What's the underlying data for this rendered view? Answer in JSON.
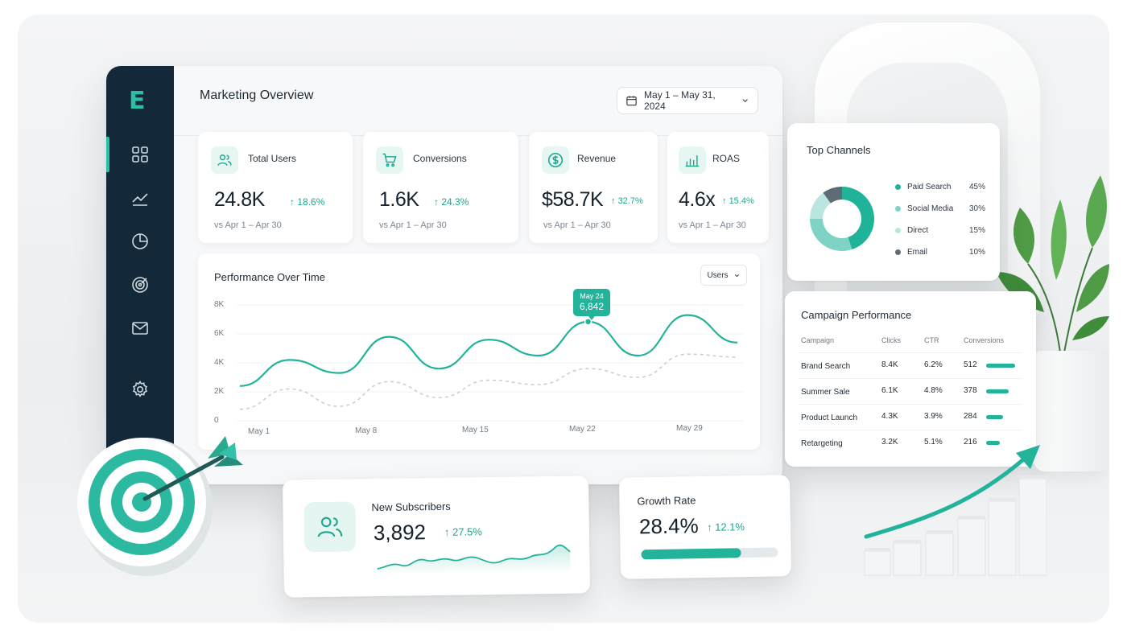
{
  "app": {
    "logo": "E",
    "title": "Marketing Overview",
    "date_range": "May 1 – May 31, 2024"
  },
  "sidebar": {
    "items": [
      {
        "name": "dashboard",
        "icon": "grid-icon",
        "active": true
      },
      {
        "name": "analytics",
        "icon": "trend-icon"
      },
      {
        "name": "reports",
        "icon": "pie-icon"
      },
      {
        "name": "goals",
        "icon": "target-icon"
      },
      {
        "name": "email",
        "icon": "mail-icon"
      },
      {
        "name": "settings",
        "icon": "gear-icon"
      }
    ]
  },
  "kpis": [
    {
      "label": "Total Users",
      "value": "24.8K",
      "delta": "18.6%",
      "sub": "vs Apr 1 – Apr 30",
      "icon": "users-icon"
    },
    {
      "label": "Conversions",
      "value": "1.6K",
      "delta": "24.3%",
      "sub": "vs Apr 1 – Apr 30",
      "icon": "cart-icon"
    },
    {
      "label": "Revenue",
      "value": "$58.7K",
      "delta": "32.7%",
      "sub": "vs Apr 1 – Apr 30",
      "icon": "dollar-icon"
    },
    {
      "label": "ROAS",
      "value": "4.6x",
      "delta": "15.4%",
      "sub": "vs Apr 1 – Apr 30",
      "icon": "bar-chart-icon"
    }
  ],
  "performance": {
    "title": "Performance Over Time",
    "metric": "Users",
    "tooltip": {
      "date": "May 24",
      "value": "6,842"
    },
    "y_ticks": [
      "8K",
      "6K",
      "4K",
      "2K",
      "0"
    ],
    "x_ticks": [
      "May 1",
      "May 8",
      "May 15",
      "May 22",
      "May 29"
    ]
  },
  "chart_data": {
    "type": "line",
    "title": "Performance Over Time",
    "xlabel": "",
    "ylabel": "",
    "ylim": [
      0,
      8000
    ],
    "x": [
      "May 1",
      "May 4",
      "May 8",
      "May 11",
      "May 15",
      "May 18",
      "May 22",
      "May 24",
      "May 27",
      "May 29",
      "May 31"
    ],
    "series": [
      {
        "values": [
          2400,
          4200,
          3300,
          5800,
          3600,
          5600,
          4500,
          6842,
          4500,
          7300,
          5400
        ],
        "color": "#23b39b"
      },
      {
        "values": [
          800,
          2200,
          1000,
          2700,
          1600,
          2800,
          2500,
          3600,
          3000,
          4600,
          4400
        ],
        "color": "#c9cfd3",
        "style": "dashed"
      }
    ],
    "grid": true
  },
  "top_channels": {
    "title": "Top Channels",
    "items": [
      {
        "label": "Paid Search",
        "pct": "45%",
        "value": 45,
        "color": "#1fb39a"
      },
      {
        "label": "Social Media",
        "pct": "30%",
        "value": 30,
        "color": "#7fd3c4"
      },
      {
        "label": "Direct",
        "pct": "15%",
        "value": 15,
        "color": "#b9e6de"
      },
      {
        "label": "Email",
        "pct": "10%",
        "value": 10,
        "color": "#5d6b74"
      }
    ]
  },
  "campaigns": {
    "title": "Campaign Performance",
    "columns": [
      "Campaign",
      "Clicks",
      "CTR",
      "Conversions"
    ],
    "rows": [
      {
        "name": "Brand Search",
        "clicks": "8.4K",
        "ctr": "6.2%",
        "conversions": "512",
        "bar": 0.95
      },
      {
        "name": "Summer Sale",
        "clicks": "6.1K",
        "ctr": "4.8%",
        "conversions": "378",
        "bar": 0.74
      },
      {
        "name": "Product Launch",
        "clicks": "4.3K",
        "ctr": "3.9%",
        "conversions": "284",
        "bar": 0.56
      },
      {
        "name": "Retargeting",
        "clicks": "3.2K",
        "ctr": "5.1%",
        "conversions": "216",
        "bar": 0.44
      }
    ]
  },
  "subscribers": {
    "label": "New Subscribers",
    "value": "3,892",
    "delta": "27.5%",
    "icon": "users-icon"
  },
  "growth": {
    "label": "Growth Rate",
    "value": "28.4%",
    "delta": "12.1%",
    "progress": 0.73
  },
  "colors": {
    "accent": "#23b39b",
    "sidebar": "#13293a",
    "positive": "#1ba88f"
  }
}
